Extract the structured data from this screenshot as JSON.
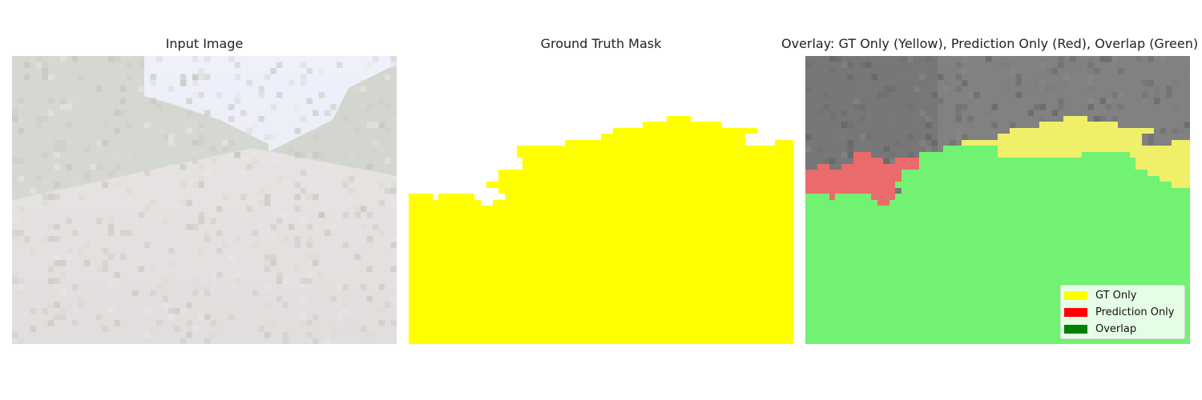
{
  "panels": {
    "input": {
      "title": "Input Image"
    },
    "gt": {
      "title": "Ground Truth Mask",
      "mask_color": "#ffff00"
    },
    "overlay": {
      "title": "Overlay: GT Only (Yellow), Prediction Only (Red), Overlap (Green)"
    }
  },
  "legend": {
    "items": [
      {
        "label": "GT Only",
        "color": "#ffff00"
      },
      {
        "label": "Prediction Only",
        "color": "#ff0000"
      },
      {
        "label": "Overlap",
        "color": "#008000"
      }
    ]
  },
  "colors": {
    "overlay_gt_only": "#f0ef6a",
    "overlay_pred_only": "#ea6b6b",
    "overlay_overlap": "#72f272",
    "overlay_background": "#777777"
  }
}
